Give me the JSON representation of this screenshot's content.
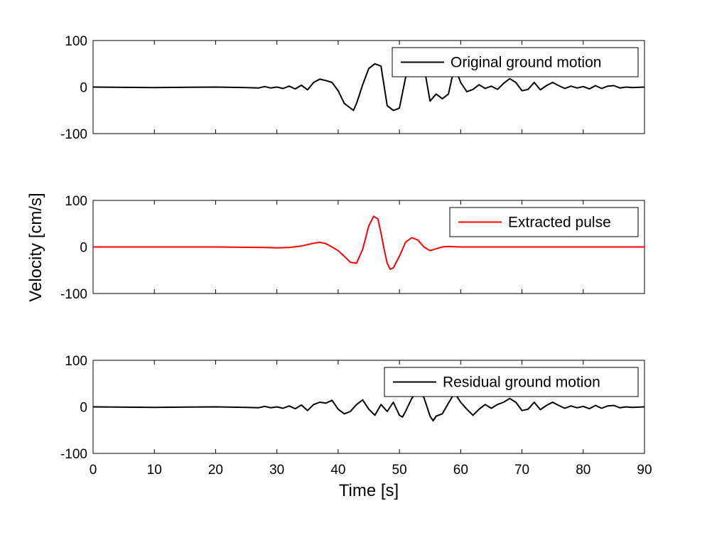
{
  "chart_data": {
    "type": "line",
    "xlabel": "Time [s]",
    "ylabel": "Velocity [cm/s]",
    "xlim": [
      0,
      90
    ],
    "x_ticks": [
      "0",
      "10",
      "20",
      "30",
      "40",
      "50",
      "60",
      "70",
      "80",
      "90"
    ],
    "grid": false,
    "panels": [
      {
        "legend": "Original ground motion",
        "legend_position": "top-right",
        "color": "#000000",
        "ylim": [
          -100,
          100
        ],
        "y_ticks": [
          "100",
          "0",
          "-100"
        ],
        "series": [
          {
            "name": "Original ground motion",
            "x": [
              0,
              10,
              20,
              25,
              27,
              28,
              29,
              30,
              31,
              32,
              33,
              34,
              35,
              36,
              37,
              38,
              39,
              40,
              41,
              42,
              42.5,
              43,
              44,
              45,
              46,
              47,
              48,
              49,
              49.5,
              50,
              51,
              52,
              53,
              54,
              55,
              56,
              57,
              58,
              59,
              60,
              61,
              62,
              63,
              64,
              65,
              66,
              67,
              68,
              69,
              70,
              71,
              72,
              73,
              74,
              75,
              76,
              77,
              78,
              79,
              80,
              81,
              82,
              83,
              84,
              85,
              86,
              87,
              88,
              90
            ],
            "y": [
              0,
              -1,
              0,
              -1,
              -2,
              1,
              -2,
              0,
              -3,
              2,
              -4,
              4,
              -6,
              10,
              17,
              14,
              10,
              -8,
              -35,
              -45,
              -50,
              -35,
              5,
              40,
              50,
              45,
              -40,
              -50,
              -48,
              -45,
              20,
              50,
              48,
              45,
              -30,
              -15,
              -25,
              -15,
              45,
              10,
              -10,
              -5,
              5,
              -3,
              2,
              -5,
              8,
              18,
              10,
              -8,
              -5,
              10,
              -6,
              3,
              10,
              3,
              -3,
              2,
              -2,
              1,
              -4,
              3,
              -3,
              2,
              3,
              -2,
              0,
              -1,
              0
            ]
          }
        ]
      },
      {
        "legend": "Extracted pulse",
        "legend_position": "top-right",
        "color": "#ff0000",
        "ylim": [
          -100,
          100
        ],
        "y_ticks": [
          "100",
          "0",
          "-100"
        ],
        "series": [
          {
            "name": "Extracted pulse",
            "x": [
              0,
              20,
              28,
              30,
              32,
              34,
              35,
              36,
              37,
              38,
              39,
              40,
              41,
              42,
              43,
              44,
              45,
              45.8,
              46.5,
              47,
              47.5,
              48,
              48.5,
              49,
              50,
              51,
              52,
              53,
              54,
              55,
              56,
              57,
              58,
              60,
              65,
              90
            ],
            "y": [
              0,
              0,
              -1,
              -2,
              -1,
              2,
              5,
              8,
              10,
              7,
              0,
              -8,
              -20,
              -33,
              -35,
              -5,
              45,
              66,
              60,
              30,
              -5,
              -35,
              -48,
              -45,
              -20,
              10,
              20,
              15,
              0,
              -8,
              -4,
              0,
              1,
              0,
              0,
              0
            ]
          }
        ]
      },
      {
        "legend": "Residual ground motion",
        "legend_position": "top-right",
        "color": "#000000",
        "ylim": [
          -100,
          100
        ],
        "y_ticks": [
          "100",
          "0",
          "-100"
        ],
        "series": [
          {
            "name": "Residual ground motion",
            "x": [
              0,
              10,
              20,
              25,
              27,
              28,
              29,
              30,
              31,
              32,
              33,
              34,
              35,
              36,
              37,
              38,
              39,
              40,
              41,
              42,
              43,
              44,
              45,
              46,
              47,
              48,
              49,
              50,
              50.5,
              51,
              52,
              53,
              54,
              55,
              55.5,
              56,
              57,
              58,
              59,
              60,
              61,
              62,
              63,
              64,
              65,
              66,
              67,
              68,
              69,
              70,
              71,
              72,
              73,
              74,
              75,
              76,
              77,
              78,
              79,
              80,
              81,
              82,
              83,
              84,
              85,
              86,
              87,
              88,
              90
            ],
            "y": [
              0,
              -1,
              0,
              -1,
              -2,
              1,
              -2,
              0,
              -3,
              2,
              -4,
              4,
              -8,
              5,
              10,
              8,
              14,
              -5,
              -15,
              -10,
              5,
              15,
              -5,
              -18,
              5,
              -10,
              10,
              -18,
              -22,
              -10,
              18,
              35,
              20,
              -20,
              -30,
              -20,
              -15,
              8,
              30,
              10,
              -5,
              -18,
              -5,
              5,
              -3,
              5,
              10,
              18,
              10,
              -8,
              -5,
              10,
              -6,
              3,
              10,
              3,
              -3,
              2,
              -2,
              1,
              -4,
              3,
              -3,
              2,
              3,
              -2,
              0,
              -1,
              0
            ]
          }
        ]
      }
    ]
  }
}
